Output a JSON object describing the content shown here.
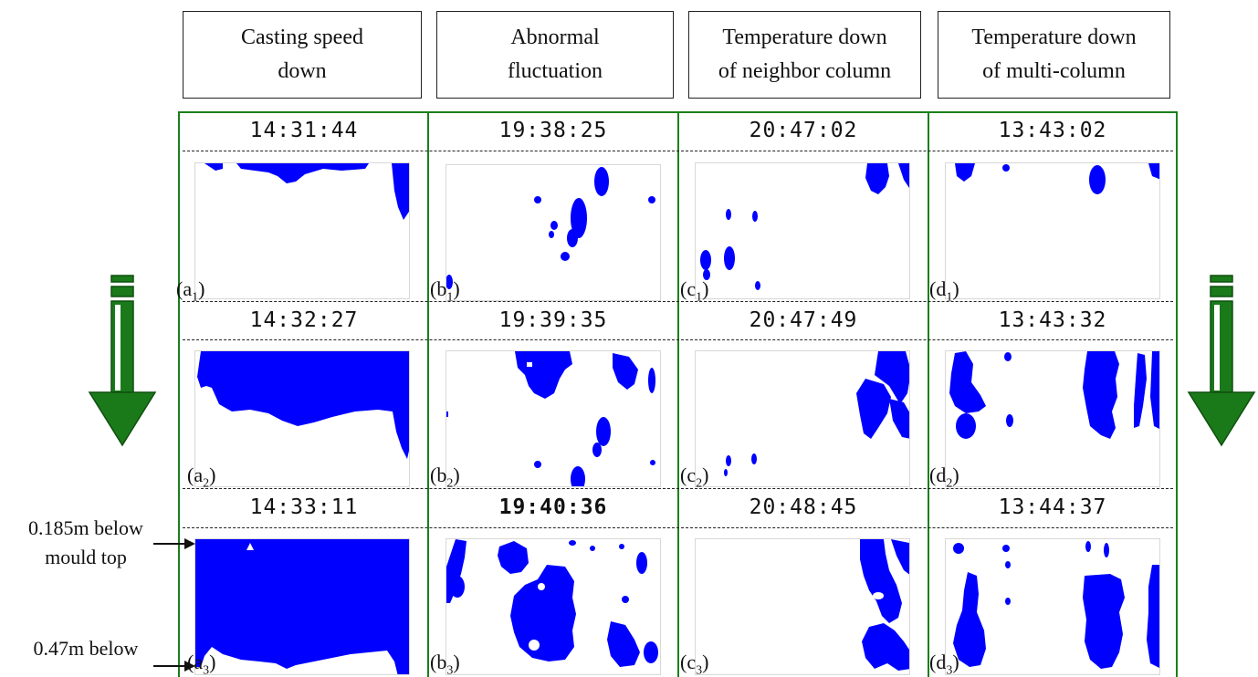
{
  "headers": [
    {
      "line1": "Casting speed",
      "line2": "down"
    },
    {
      "line1": "Abnormal",
      "line2": "fluctuation"
    },
    {
      "line1": "Temperature down",
      "line2": "of neighbor column"
    },
    {
      "line1": "Temperature down",
      "line2": "of multi-column"
    }
  ],
  "columns": [
    {
      "times": [
        "14:31:44",
        "14:32:27",
        "14:33:11"
      ],
      "labels": [
        {
          "l": "a",
          "s": "1"
        },
        {
          "l": "a",
          "s": "2"
        },
        {
          "l": "a",
          "s": "3"
        }
      ]
    },
    {
      "times": [
        "19:38:25",
        "19:39:35",
        "19:40:36"
      ],
      "labels": [
        {
          "l": "b",
          "s": "1"
        },
        {
          "l": "b",
          "s": "2"
        },
        {
          "l": "b",
          "s": "3"
        }
      ]
    },
    {
      "times": [
        "20:47:02",
        "20:47:49",
        "20:48:45"
      ],
      "labels": [
        {
          "l": "c",
          "s": "1"
        },
        {
          "l": "c",
          "s": "2"
        },
        {
          "l": "c",
          "s": "3"
        }
      ]
    },
    {
      "times": [
        "13:43:02",
        "13:43:32",
        "13:44:37"
      ],
      "labels": [
        {
          "l": "d",
          "s": "1"
        },
        {
          "l": "d",
          "s": "2"
        },
        {
          "l": "d",
          "s": "3"
        }
      ]
    }
  ],
  "annotations": {
    "top_line1": "0.185m below",
    "top_line2": "mould top",
    "bottom_line1": "0.47m below"
  },
  "colors": {
    "frame": "#1b7f1b",
    "arrow": "#1a7a1a",
    "blob": "#0000ff"
  },
  "icons": {
    "left_arrow": "down-arrow-icon",
    "right_arrow": "down-arrow-icon"
  }
}
